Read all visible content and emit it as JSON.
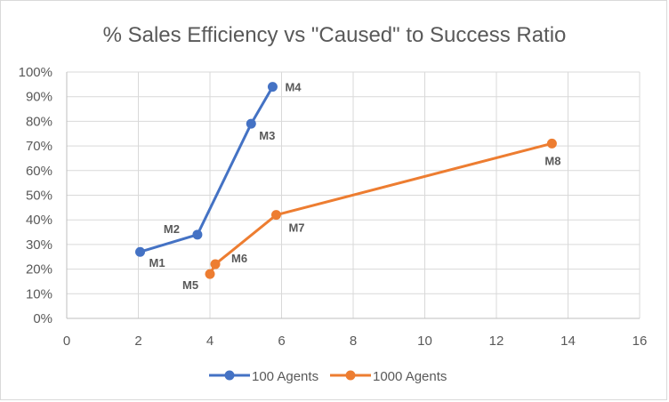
{
  "chart_data": {
    "type": "scatter",
    "title": "% Sales Efficiency vs \"Caused\" to Success Ratio",
    "xlabel": "",
    "ylabel": "",
    "xlim": [
      0,
      16
    ],
    "ylim": [
      0,
      100
    ],
    "x_ticks": [
      "0",
      "2",
      "4",
      "6",
      "8",
      "10",
      "12",
      "14",
      "16"
    ],
    "y_ticks": [
      "0%",
      "10%",
      "20%",
      "30%",
      "40%",
      "50%",
      "60%",
      "70%",
      "80%",
      "90%",
      "100%"
    ],
    "grid": true,
    "legend_position": "bottom",
    "series": [
      {
        "name": "100 Agents",
        "color": "#4472c4",
        "points": [
          {
            "label": "M1",
            "x": 2.05,
            "y": 27
          },
          {
            "label": "M2",
            "x": 3.65,
            "y": 34
          },
          {
            "label": "M3",
            "x": 5.15,
            "y": 79
          },
          {
            "label": "M4",
            "x": 5.75,
            "y": 94
          }
        ]
      },
      {
        "name": "1000 Agents",
        "color": "#ed7d31",
        "points": [
          {
            "label": "M5",
            "x": 4.0,
            "y": 18
          },
          {
            "label": "M6",
            "x": 4.15,
            "y": 22
          },
          {
            "label": "M7",
            "x": 5.85,
            "y": 42
          },
          {
            "label": "M8",
            "x": 13.55,
            "y": 71
          }
        ]
      }
    ]
  }
}
